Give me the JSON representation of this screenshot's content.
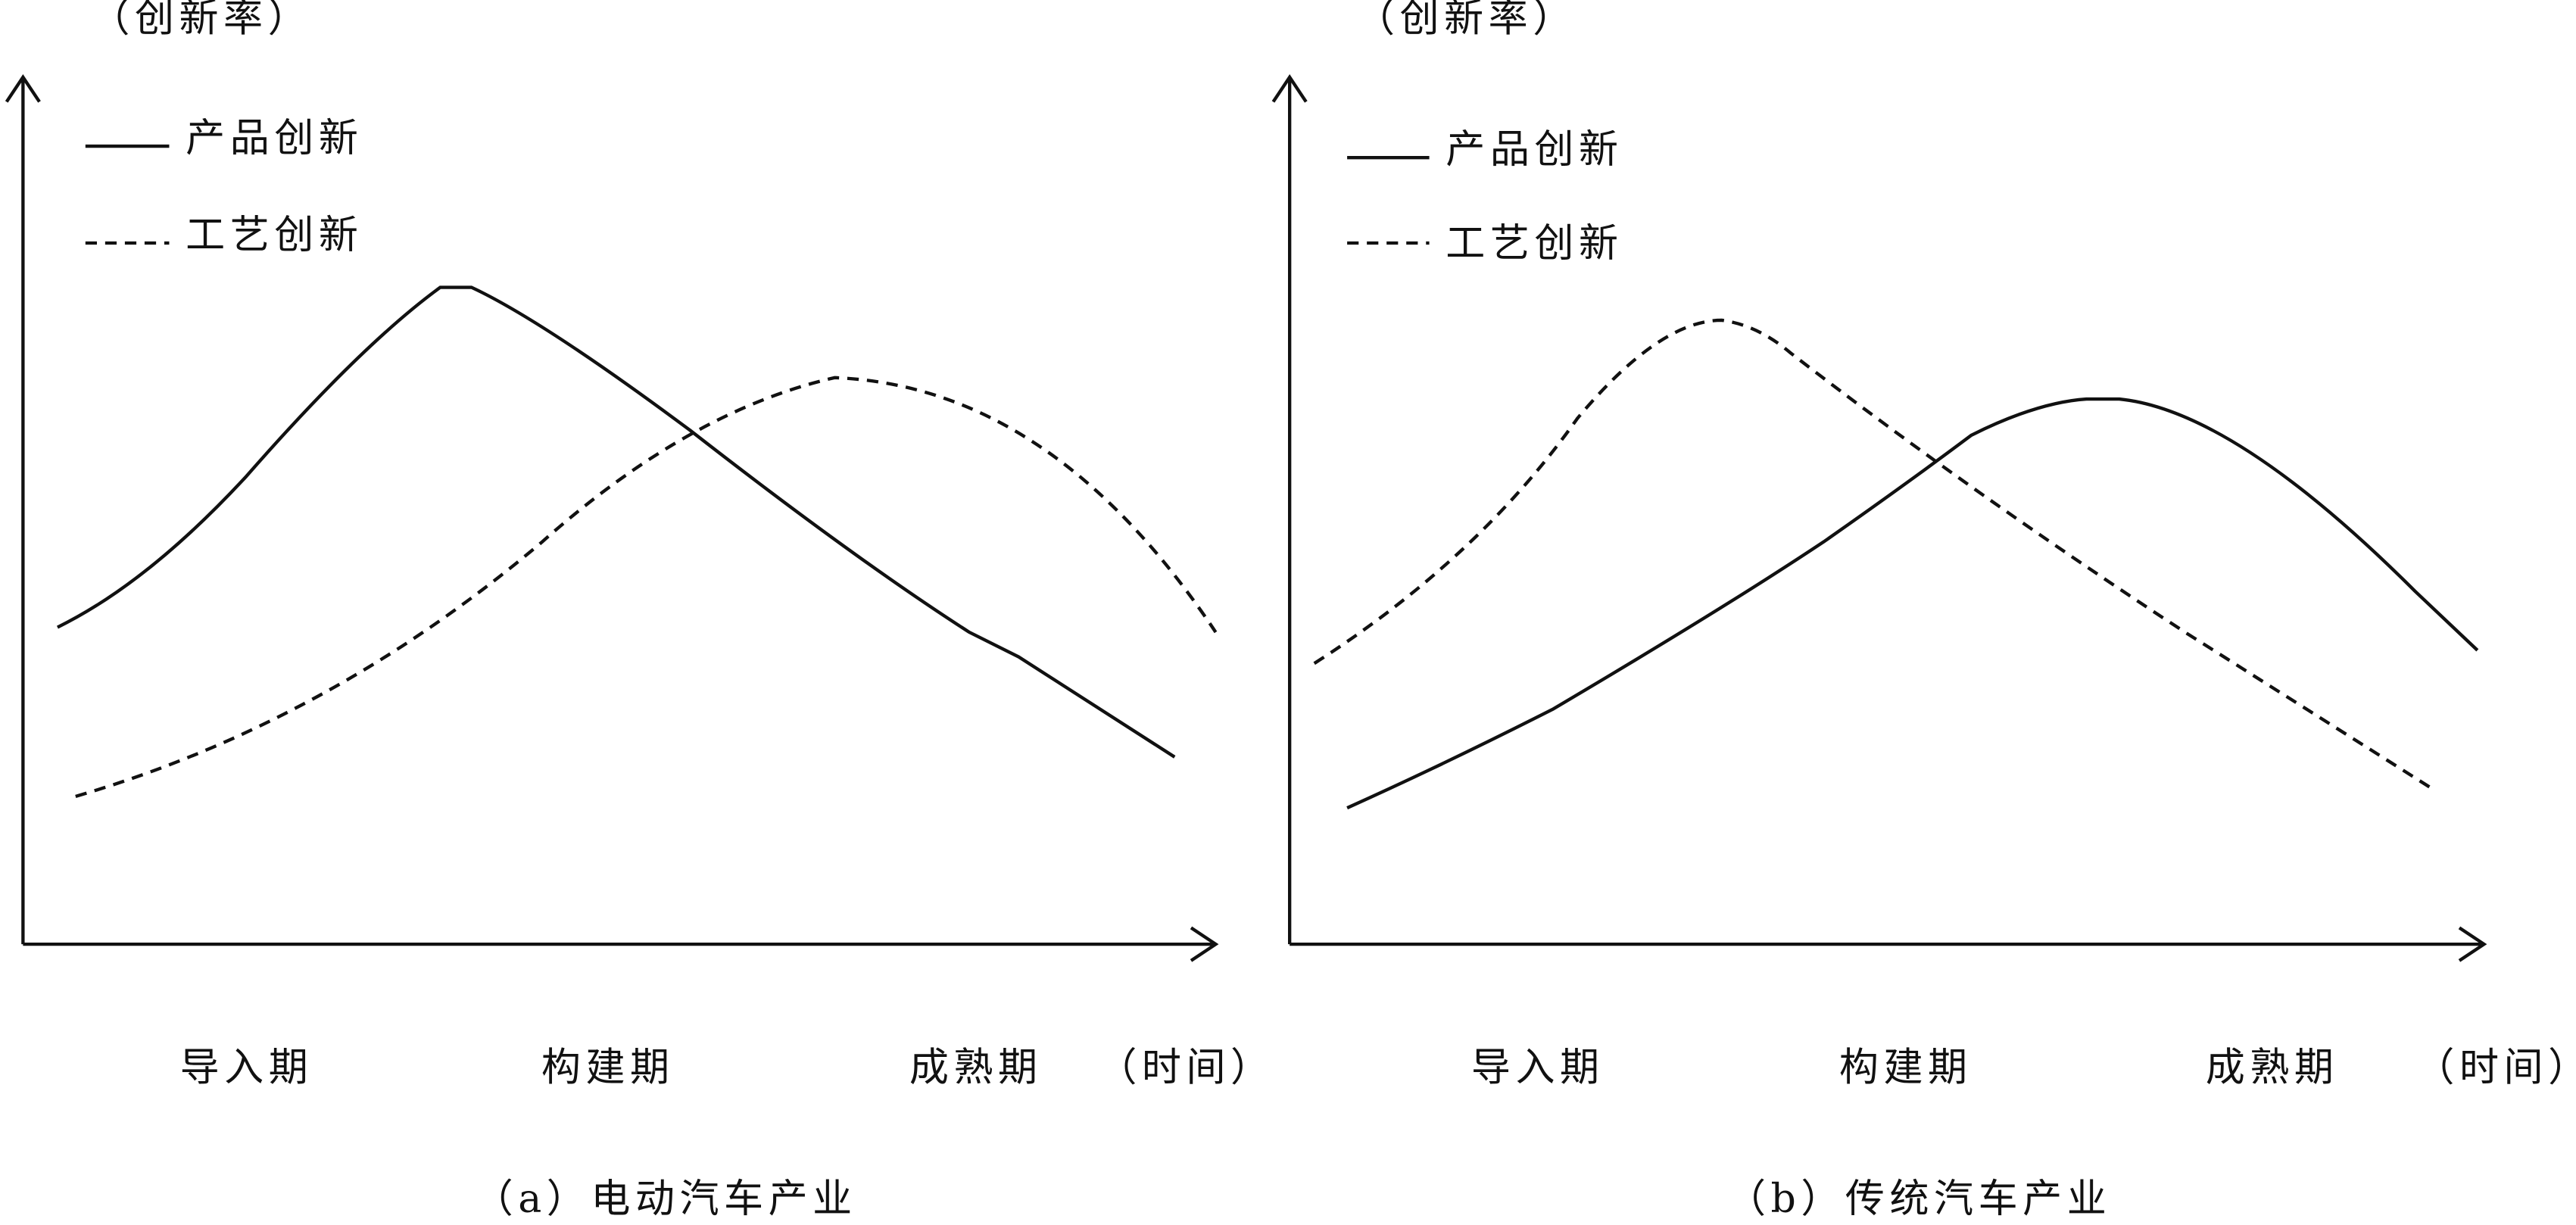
{
  "panels": [
    {
      "y_axis_label": "（创新率）",
      "legend": [
        {
          "label": "产品创新"
        },
        {
          "label": "工艺创新"
        }
      ],
      "stages": [
        "导入期",
        "构建期",
        "成熟期"
      ],
      "x_axis_label": "（时间）",
      "caption": "（a）电动汽车产业"
    },
    {
      "y_axis_label": "（创新率）",
      "legend": [
        {
          "label": "产品创新"
        },
        {
          "label": "工艺创新"
        }
      ],
      "stages": [
        "导入期",
        "构建期",
        "成熟期"
      ],
      "x_axis_label": "（时间）",
      "caption": "（b）传统汽车产业"
    }
  ]
}
